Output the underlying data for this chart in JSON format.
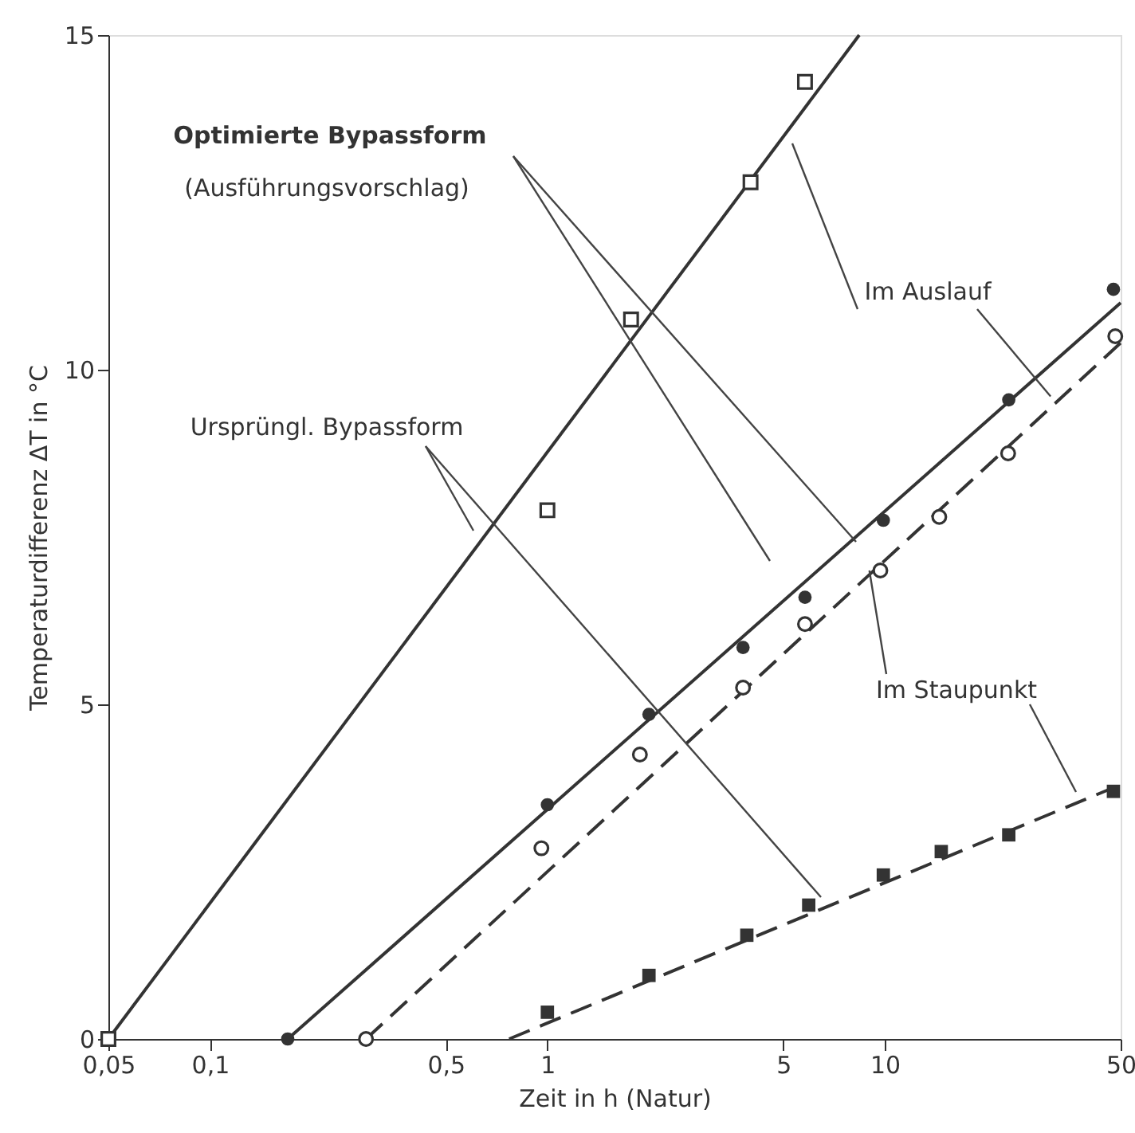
{
  "chart_data": {
    "type": "scatter",
    "xlabel": "Zeit in h (Natur)",
    "ylabel": "Temperaturdifferenz ΔT in °C",
    "log": "x",
    "xlim": [
      0.05,
      50
    ],
    "xticks": [
      {
        "value": 0.05,
        "label": "0,05"
      },
      {
        "value": 0.1,
        "label": "0,1"
      },
      {
        "value": 0.5,
        "label": "0,5"
      },
      1,
      5,
      10,
      50
    ],
    "ylim": [
      0,
      15
    ],
    "yticks": [
      0,
      5,
      10,
      15
    ],
    "grid": false,
    "series": [
      {
        "type": "line",
        "color": "#333333",
        "line_style": "solid",
        "x": [
          0.05,
          8.4
        ],
        "values": [
          0,
          15
        ]
      },
      {
        "type": "line",
        "color": "#333333",
        "line_style": "solid",
        "x": [
          0.17,
          50
        ],
        "values": [
          0,
          11.0
        ]
      },
      {
        "type": "line",
        "color": "#333333",
        "line_style": "dashed",
        "x": [
          0.29,
          50
        ],
        "values": [
          0,
          10.4
        ]
      },
      {
        "type": "line",
        "color": "#333333",
        "line_style": "dashed",
        "x": [
          0.77,
          50
        ],
        "values": [
          0,
          3.8
        ]
      },
      {
        "type": "scatter",
        "color": "#333333",
        "marker": "square",
        "x": [
          0.05,
          1,
          1.77,
          4.0,
          5.8
        ],
        "values": [
          0,
          7.9,
          10.75,
          12.8,
          14.3
        ]
      },
      {
        "type": "scatter",
        "color": "#333333",
        "marker": "circle",
        "x": [
          0.17,
          1,
          2,
          3.8,
          5.8,
          9.9,
          23.3,
          47.6
        ],
        "values": [
          0,
          3.5,
          4.85,
          5.85,
          6.6,
          7.75,
          9.55,
          11.2
        ]
      },
      {
        "type": "scatter",
        "color": "#333333",
        "marker": "circle",
        "x": [
          0.29,
          0.96,
          1.88,
          3.8,
          5.8,
          9.7,
          14.5,
          23.2,
          48.2
        ],
        "values": [
          0,
          2.85,
          4.25,
          5.25,
          6.2,
          7.0,
          7.8,
          8.75,
          10.5
        ]
      },
      {
        "type": "scatter",
        "color": "#333333",
        "marker": "square",
        "x": [
          1,
          2,
          3.9,
          5.95,
          9.9,
          14.7,
          23.3,
          47.6
        ],
        "values": [
          0.4,
          0.95,
          1.55,
          2.0,
          2.45,
          2.8,
          3.05,
          3.7
        ]
      }
    ],
    "annotations": [
      "Optimierte Bypassform",
      "(Ausführungsvorschlag)",
      "Ursprüngl. Bypassform",
      {
        "text": "Im Auslauf",
        "x": 31,
        "y": 9.6
      },
      {
        "text": "Im Staupunkt",
        "x": 9,
        "y": 7.0
      }
    ]
  }
}
